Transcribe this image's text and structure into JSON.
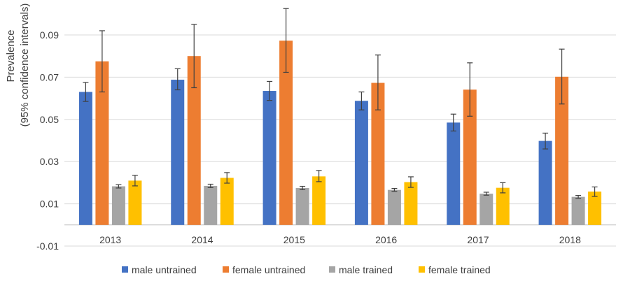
{
  "chart_data": {
    "type": "bar",
    "title": "",
    "xlabel": "",
    "ylabel": "Prevalence",
    "ylabel_line2": "(95% confidence intervals)",
    "ylim": [
      -0.01,
      0.1
    ],
    "yticks": [
      -0.01,
      0.01,
      0.03,
      0.05,
      0.07,
      0.09
    ],
    "ytick_labels": [
      "-0.01",
      "0.01",
      "0.03",
      "0.05",
      "0.07",
      "0.09"
    ],
    "grid": true,
    "legend_position": "bottom",
    "categories": [
      "2013",
      "2014",
      "2015",
      "2016",
      "2017",
      "2018"
    ],
    "series": [
      {
        "name": "male untrained",
        "color": "#4472C4",
        "values": [
          0.063,
          0.0688,
          0.0635,
          0.0588,
          0.0485,
          0.0398
        ],
        "lower": [
          0.0585,
          0.064,
          0.059,
          0.0545,
          0.0445,
          0.036
        ],
        "upper": [
          0.0675,
          0.074,
          0.068,
          0.063,
          0.0525,
          0.0435
        ]
      },
      {
        "name": "female untrained",
        "color": "#ED7D31",
        "values": [
          0.0775,
          0.08,
          0.0873,
          0.0673,
          0.0641,
          0.0702
        ],
        "lower": [
          0.063,
          0.065,
          0.0723,
          0.0545,
          0.0515,
          0.0573
        ],
        "upper": [
          0.092,
          0.095,
          0.1025,
          0.0805,
          0.0768,
          0.0833
        ]
      },
      {
        "name": "male trained",
        "color": "#A5A5A5",
        "values": [
          0.0183,
          0.0185,
          0.0175,
          0.0166,
          0.0148,
          0.0133
        ],
        "lower": [
          0.0175,
          0.0177,
          0.0167,
          0.0159,
          0.0141,
          0.0126
        ],
        "upper": [
          0.0191,
          0.0193,
          0.0183,
          0.0173,
          0.0155,
          0.014
        ]
      },
      {
        "name": "female trained",
        "color": "#FFC000",
        "values": [
          0.021,
          0.0223,
          0.023,
          0.0203,
          0.0176,
          0.0158
        ],
        "lower": [
          0.0185,
          0.0198,
          0.0205,
          0.0178,
          0.0152,
          0.0135
        ],
        "upper": [
          0.0235,
          0.0248,
          0.0258,
          0.0228,
          0.02,
          0.018
        ]
      }
    ]
  }
}
